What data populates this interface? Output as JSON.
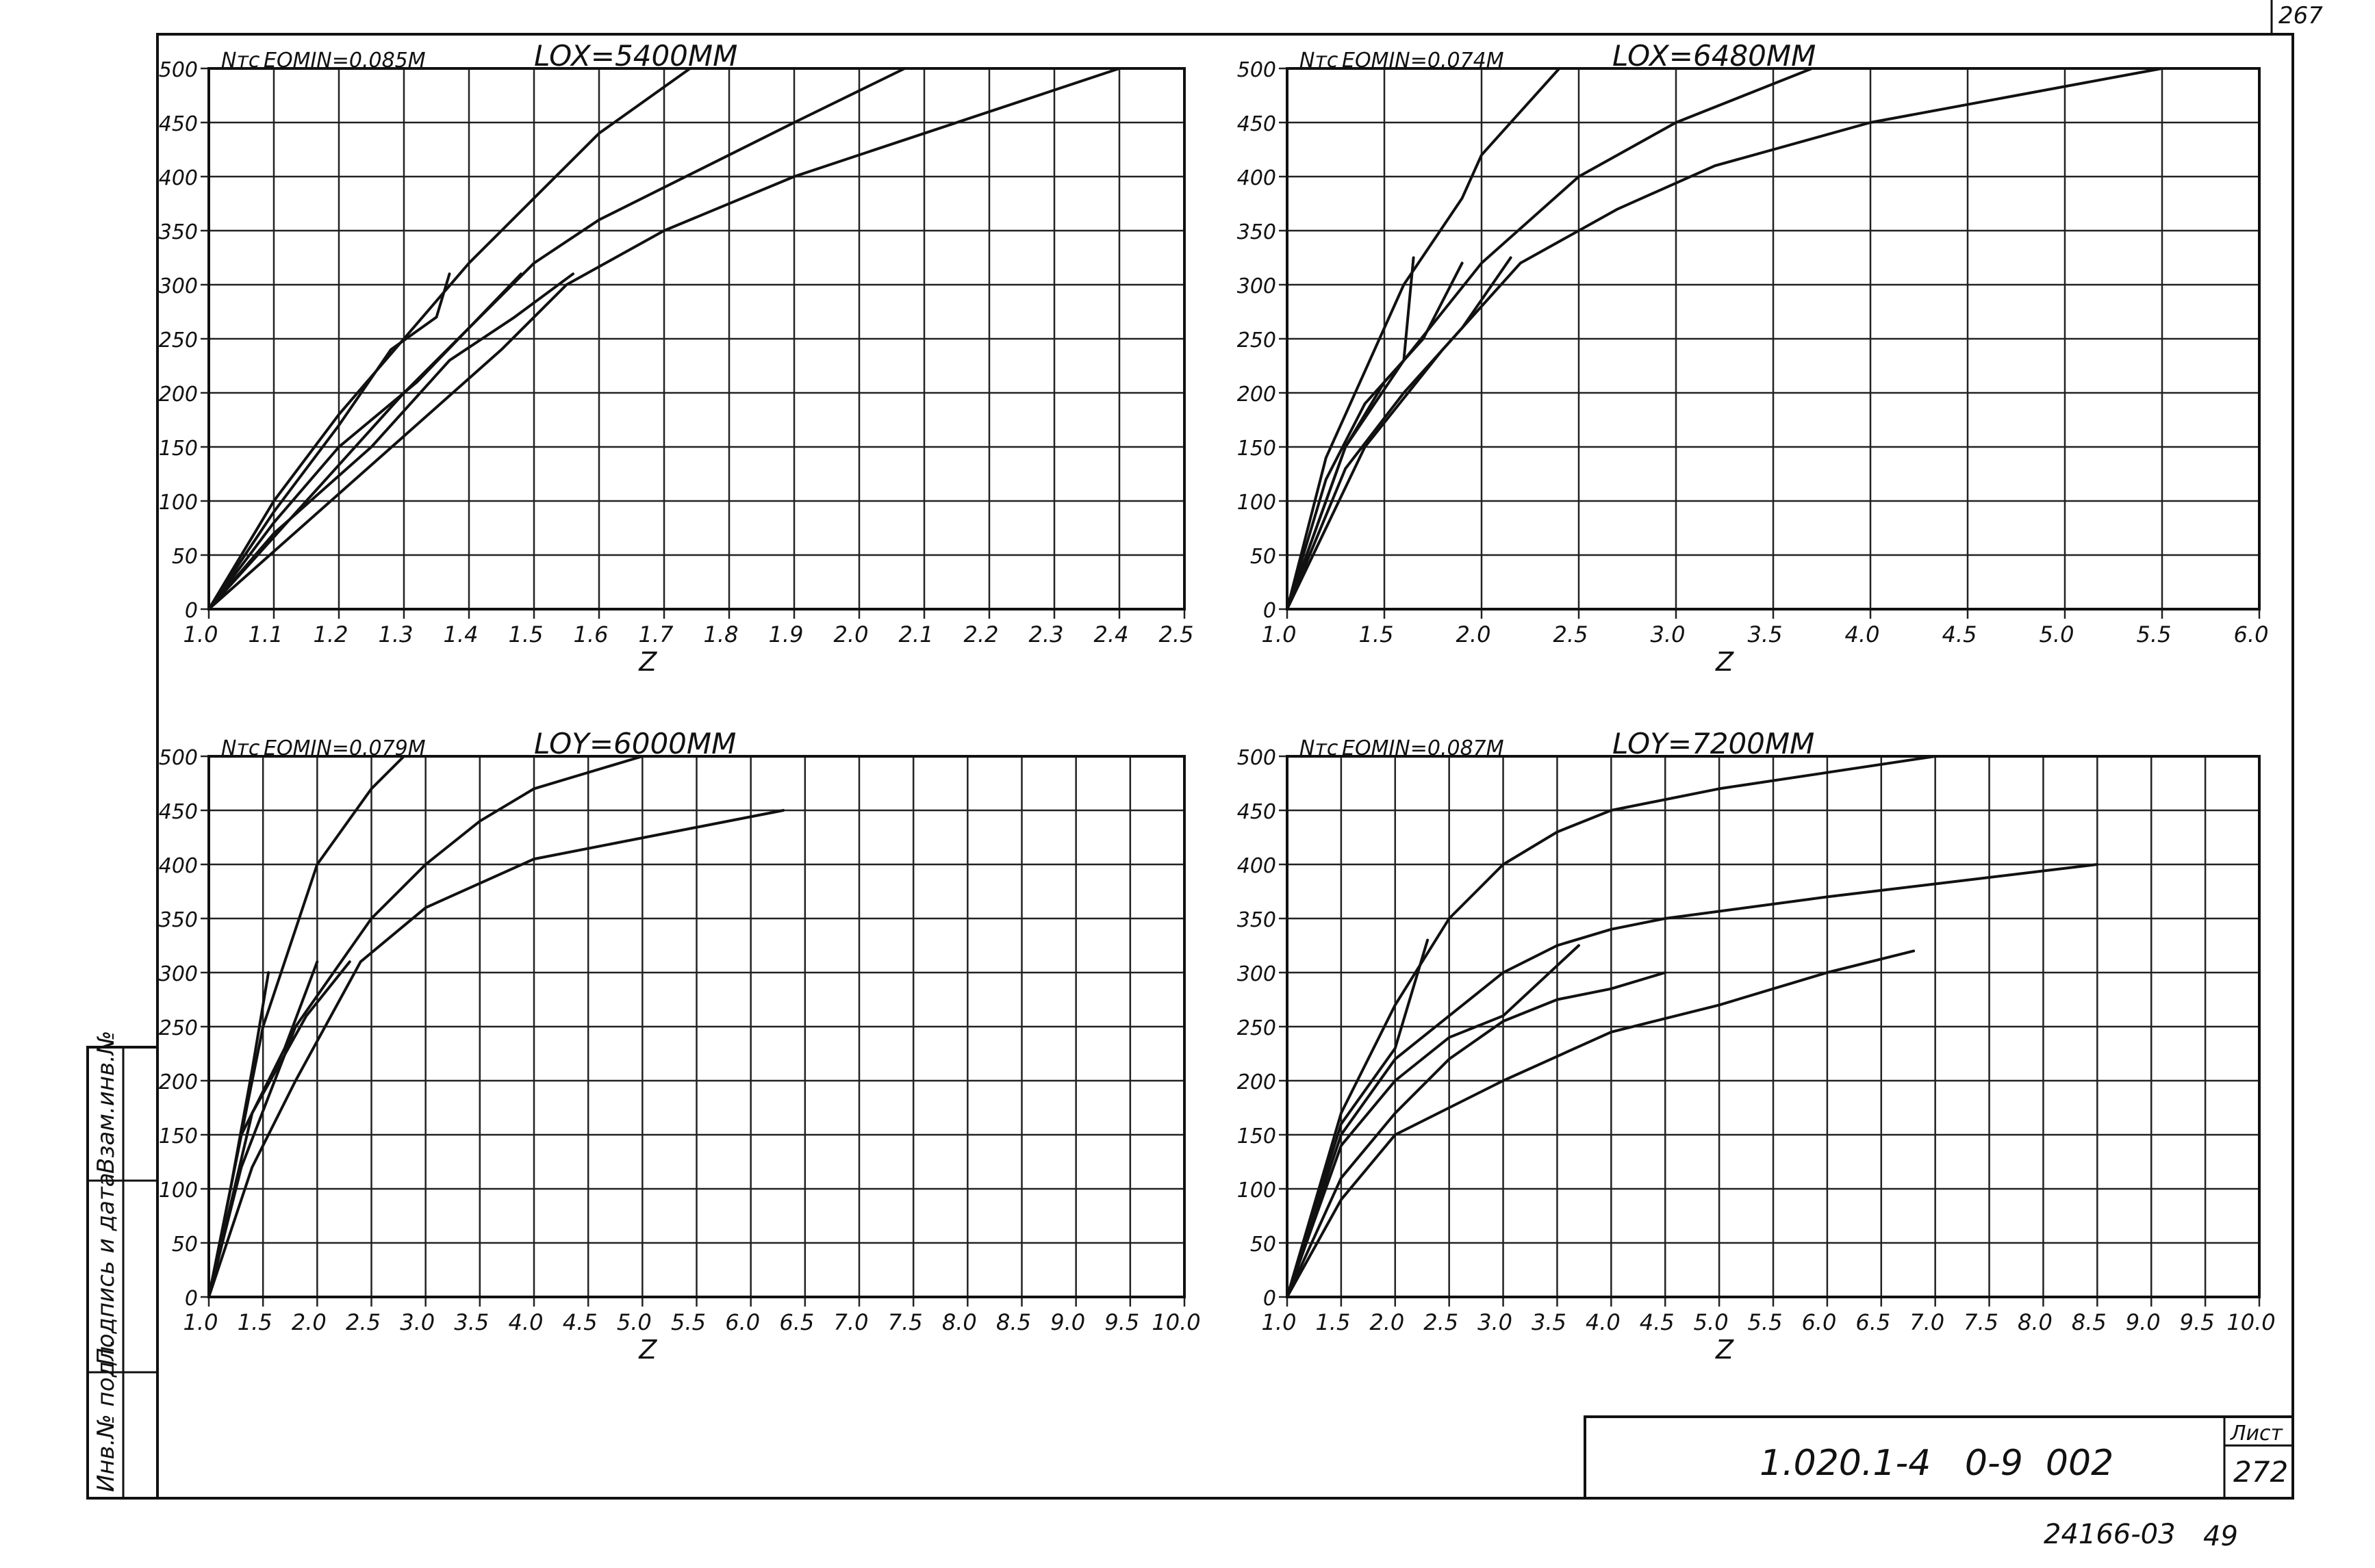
{
  "sheet": {
    "corner_mark": "267",
    "doc_code": "1.020.1-4   0-9  002",
    "list_label": "Лист",
    "list_number": "272",
    "bottom_code": "24166-03",
    "bottom_number": "49",
    "side_labels": [
      "Взам.инв.№",
      "Подпись и дата",
      "Инв.№ подл."
    ]
  },
  "chart_data": [
    {
      "type": "line",
      "ylabel": "Nтс",
      "xlabel": "Z",
      "annotation": "EOMIN=0.085М",
      "title": "LOX=5400ММ",
      "xlim": [
        1.0,
        2.5
      ],
      "ylim": [
        0,
        500
      ],
      "xticks": [
        1.0,
        1.1,
        1.2,
        1.3,
        1.4,
        1.5,
        1.6,
        1.7,
        1.8,
        1.9,
        2.0,
        2.1,
        2.2,
        2.3,
        2.4,
        2.5
      ],
      "xticklabels": [
        "1.0",
        "1.1",
        "1.2",
        "1.3",
        "1.4",
        "1.5",
        "1.6",
        "1.7",
        "1.8",
        "1.9",
        "2.0",
        "2.1",
        "2.2",
        "2.3",
        "2.4",
        "2.5"
      ],
      "yticks": [
        0,
        50,
        100,
        150,
        200,
        250,
        300,
        350,
        400,
        450,
        500
      ],
      "yticklabels": [
        "0",
        "50",
        "100",
        "150",
        "200",
        "250",
        "300",
        "350",
        "400",
        "450",
        "500"
      ],
      "grid": true,
      "series": [
        {
          "points": [
            [
              1.0,
              0
            ],
            [
              1.1,
              100
            ],
            [
              1.2,
              180
            ],
            [
              1.3,
              250
            ],
            [
              1.4,
              320
            ],
            [
              1.5,
              380
            ],
            [
              1.6,
              440
            ],
            [
              1.74,
              500
            ]
          ]
        },
        {
          "points": [
            [
              1.0,
              0
            ],
            [
              1.15,
              100
            ],
            [
              1.3,
              200
            ],
            [
              1.4,
              260
            ],
            [
              1.5,
              320
            ],
            [
              1.6,
              360
            ],
            [
              1.8,
              420
            ],
            [
              1.9,
              450
            ],
            [
              2.07,
              500
            ]
          ]
        },
        {
          "points": [
            [
              1.0,
              0
            ],
            [
              1.15,
              80
            ],
            [
              1.3,
              160
            ],
            [
              1.45,
              240
            ],
            [
              1.55,
              300
            ],
            [
              1.7,
              350
            ],
            [
              1.9,
              400
            ],
            [
              2.1,
              440
            ],
            [
              2.4,
              500
            ]
          ]
        },
        {
          "points": [
            [
              1.0,
              0
            ],
            [
              1.1,
              70
            ],
            [
              1.25,
              150
            ],
            [
              1.37,
              230
            ],
            [
              1.47,
              270
            ],
            [
              1.56,
              310
            ]
          ]
        },
        {
          "points": [
            [
              1.0,
              0
            ],
            [
              1.1,
              80
            ],
            [
              1.2,
              150
            ],
            [
              1.32,
              210
            ],
            [
              1.48,
              310
            ]
          ]
        },
        {
          "points": [
            [
              1.0,
              0
            ],
            [
              1.1,
              90
            ],
            [
              1.2,
              170
            ],
            [
              1.28,
              240
            ],
            [
              1.35,
              270
            ],
            [
              1.37,
              310
            ]
          ]
        }
      ]
    },
    {
      "type": "line",
      "ylabel": "Nтс",
      "xlabel": "Z",
      "annotation": "EOMIN=0.074М",
      "title": "LOX=6480ММ",
      "xlim": [
        1.0,
        6.0
      ],
      "ylim": [
        0,
        500
      ],
      "xticks": [
        1.0,
        1.5,
        2.0,
        2.5,
        3.0,
        3.5,
        4.0,
        4.5,
        5.0,
        5.5,
        6.0
      ],
      "xticklabels": [
        "1.0",
        "1.5",
        "2.0",
        "2.5",
        "3.0",
        "3.5",
        "4.0",
        "4.5",
        "5.0",
        "5.5",
        "6.0"
      ],
      "yticks": [
        0,
        50,
        100,
        150,
        200,
        250,
        300,
        350,
        400,
        450,
        500
      ],
      "yticklabels": [
        "0",
        "50",
        "100",
        "150",
        "200",
        "250",
        "300",
        "350",
        "400",
        "450",
        "500"
      ],
      "grid": true,
      "series": [
        {
          "points": [
            [
              1.0,
              0
            ],
            [
              1.2,
              140
            ],
            [
              1.4,
              220
            ],
            [
              1.6,
              300
            ],
            [
              1.9,
              380
            ],
            [
              2.0,
              420
            ],
            [
              2.2,
              460
            ],
            [
              2.4,
              500
            ]
          ]
        },
        {
          "points": [
            [
              1.0,
              0
            ],
            [
              1.3,
              150
            ],
            [
              1.6,
              230
            ],
            [
              2.0,
              320
            ],
            [
              2.5,
              400
            ],
            [
              3.0,
              450
            ],
            [
              3.7,
              500
            ]
          ]
        },
        {
          "points": [
            [
              1.0,
              0
            ],
            [
              1.4,
              150
            ],
            [
              1.8,
              240
            ],
            [
              2.2,
              320
            ],
            [
              2.7,
              370
            ],
            [
              3.2,
              410
            ],
            [
              4.0,
              450
            ],
            [
              5.5,
              500
            ]
          ]
        },
        {
          "points": [
            [
              1.0,
              0
            ],
            [
              1.2,
              120
            ],
            [
              1.4,
              190
            ],
            [
              1.6,
              230
            ],
            [
              1.65,
              325
            ]
          ]
        },
        {
          "points": [
            [
              1.0,
              0
            ],
            [
              1.3,
              150
            ],
            [
              1.5,
              210
            ],
            [
              1.7,
              250
            ],
            [
              1.9,
              320
            ]
          ]
        },
        {
          "points": [
            [
              1.0,
              0
            ],
            [
              1.3,
              130
            ],
            [
              1.6,
              200
            ],
            [
              1.9,
              260
            ],
            [
              2.15,
              325
            ]
          ]
        }
      ]
    },
    {
      "type": "line",
      "ylabel": "Nтс",
      "xlabel": "Z",
      "annotation": "EOMIN=0.079М",
      "title": "LOY=6000ММ",
      "xlim": [
        1.0,
        10.0
      ],
      "ylim": [
        0,
        500
      ],
      "xticks": [
        1.0,
        1.5,
        2.0,
        2.5,
        3.0,
        3.5,
        4.0,
        4.5,
        5.0,
        5.5,
        6.0,
        6.5,
        7.0,
        7.5,
        8.0,
        8.5,
        9.0,
        9.5,
        10.0
      ],
      "xticklabels": [
        "1.0",
        "1.5",
        "2.0",
        "2.5",
        "3.0",
        "3.5",
        "4.0",
        "4.5",
        "5.0",
        "5.5",
        "6.0",
        "6.5",
        "7.0",
        "7.5",
        "8.0",
        "8.5",
        "9.0",
        "9.5",
        "10.0"
      ],
      "yticks": [
        0,
        50,
        100,
        150,
        200,
        250,
        300,
        350,
        400,
        450,
        500
      ],
      "yticklabels": [
        "0",
        "50",
        "100",
        "150",
        "200",
        "250",
        "300",
        "350",
        "400",
        "450",
        "500"
      ],
      "grid": true,
      "series": [
        {
          "points": [
            [
              1.0,
              0
            ],
            [
              1.2,
              100
            ],
            [
              1.5,
              250
            ],
            [
              2.0,
              400
            ],
            [
              2.5,
              470
            ],
            [
              2.8,
              500
            ]
          ]
        },
        {
          "points": [
            [
              1.0,
              0
            ],
            [
              1.3,
              120
            ],
            [
              1.8,
              250
            ],
            [
              2.5,
              350
            ],
            [
              3.0,
              400
            ],
            [
              3.5,
              440
            ],
            [
              4.0,
              470
            ],
            [
              5.0,
              500
            ]
          ]
        },
        {
          "points": [
            [
              1.0,
              0
            ],
            [
              1.4,
              120
            ],
            [
              1.8,
              200
            ],
            [
              2.4,
              310
            ],
            [
              3.0,
              360
            ],
            [
              4.0,
              405
            ],
            [
              6.3,
              450
            ]
          ]
        },
        {
          "points": [
            [
              1.0,
              0
            ],
            [
              1.2,
              100
            ],
            [
              1.4,
              210
            ],
            [
              1.55,
              300
            ]
          ]
        },
        {
          "points": [
            [
              1.0,
              0
            ],
            [
              1.3,
              150
            ],
            [
              1.7,
              230
            ],
            [
              2.0,
              310
            ]
          ]
        },
        {
          "points": [
            [
              1.0,
              0
            ],
            [
              1.4,
              170
            ],
            [
              1.9,
              260
            ],
            [
              2.3,
              310
            ]
          ]
        }
      ]
    },
    {
      "type": "line",
      "ylabel": "Nтс",
      "xlabel": "Z",
      "annotation": "EOMIN=0.087М",
      "title": "LOY=7200ММ",
      "xlim": [
        1.0,
        10.0
      ],
      "ylim": [
        0,
        500
      ],
      "xticks": [
        1.0,
        1.5,
        2.0,
        2.5,
        3.0,
        3.5,
        4.0,
        4.5,
        5.0,
        5.5,
        6.0,
        6.5,
        7.0,
        7.5,
        8.0,
        8.5,
        9.0,
        9.5,
        10.0
      ],
      "xticklabels": [
        "1.0",
        "1.5",
        "2.0",
        "2.5",
        "3.0",
        "3.5",
        "4.0",
        "4.5",
        "5.0",
        "5.5",
        "6.0",
        "6.5",
        "7.0",
        "7.5",
        "8.0",
        "8.5",
        "9.0",
        "9.5",
        "10.0"
      ],
      "yticks": [
        0,
        50,
        100,
        150,
        200,
        250,
        300,
        350,
        400,
        450,
        500
      ],
      "yticklabels": [
        "0",
        "50",
        "100",
        "150",
        "200",
        "250",
        "300",
        "350",
        "400",
        "450",
        "500"
      ],
      "grid": true,
      "series": [
        {
          "points": [
            [
              1.0,
              0
            ],
            [
              1.5,
              170
            ],
            [
              2.0,
              270
            ],
            [
              2.5,
              350
            ],
            [
              3.0,
              400
            ],
            [
              3.5,
              430
            ],
            [
              4.0,
              450
            ],
            [
              5.0,
              470
            ],
            [
              6.0,
              485
            ],
            [
              7.0,
              500
            ]
          ]
        },
        {
          "points": [
            [
              1.0,
              0
            ],
            [
              1.5,
              150
            ],
            [
              2.0,
              220
            ],
            [
              2.5,
              260
            ],
            [
              3.0,
              300
            ],
            [
              3.5,
              325
            ],
            [
              4.0,
              340
            ],
            [
              4.5,
              350
            ],
            [
              6.0,
              370
            ],
            [
              8.5,
              400
            ]
          ]
        },
        {
          "points": [
            [
              1.0,
              0
            ],
            [
              1.5,
              110
            ],
            [
              2.0,
              170
            ],
            [
              2.5,
              220
            ],
            [
              3.0,
              255
            ],
            [
              3.5,
              275
            ],
            [
              4.0,
              285
            ],
            [
              4.5,
              300
            ]
          ]
        },
        {
          "points": [
            [
              1.0,
              0
            ],
            [
              1.5,
              90
            ],
            [
              2.0,
              150
            ],
            [
              3.0,
              200
            ],
            [
              4.0,
              245
            ],
            [
              5.0,
              270
            ],
            [
              6.0,
              300
            ],
            [
              6.8,
              320
            ]
          ]
        },
        {
          "points": [
            [
              1.0,
              0
            ],
            [
              1.5,
              160
            ],
            [
              2.0,
              230
            ],
            [
              2.3,
              330
            ]
          ]
        },
        {
          "points": [
            [
              1.0,
              0
            ],
            [
              1.5,
              140
            ],
            [
              2.0,
              200
            ],
            [
              2.5,
              240
            ],
            [
              3.0,
              260
            ],
            [
              3.7,
              325
            ]
          ]
        }
      ]
    }
  ]
}
